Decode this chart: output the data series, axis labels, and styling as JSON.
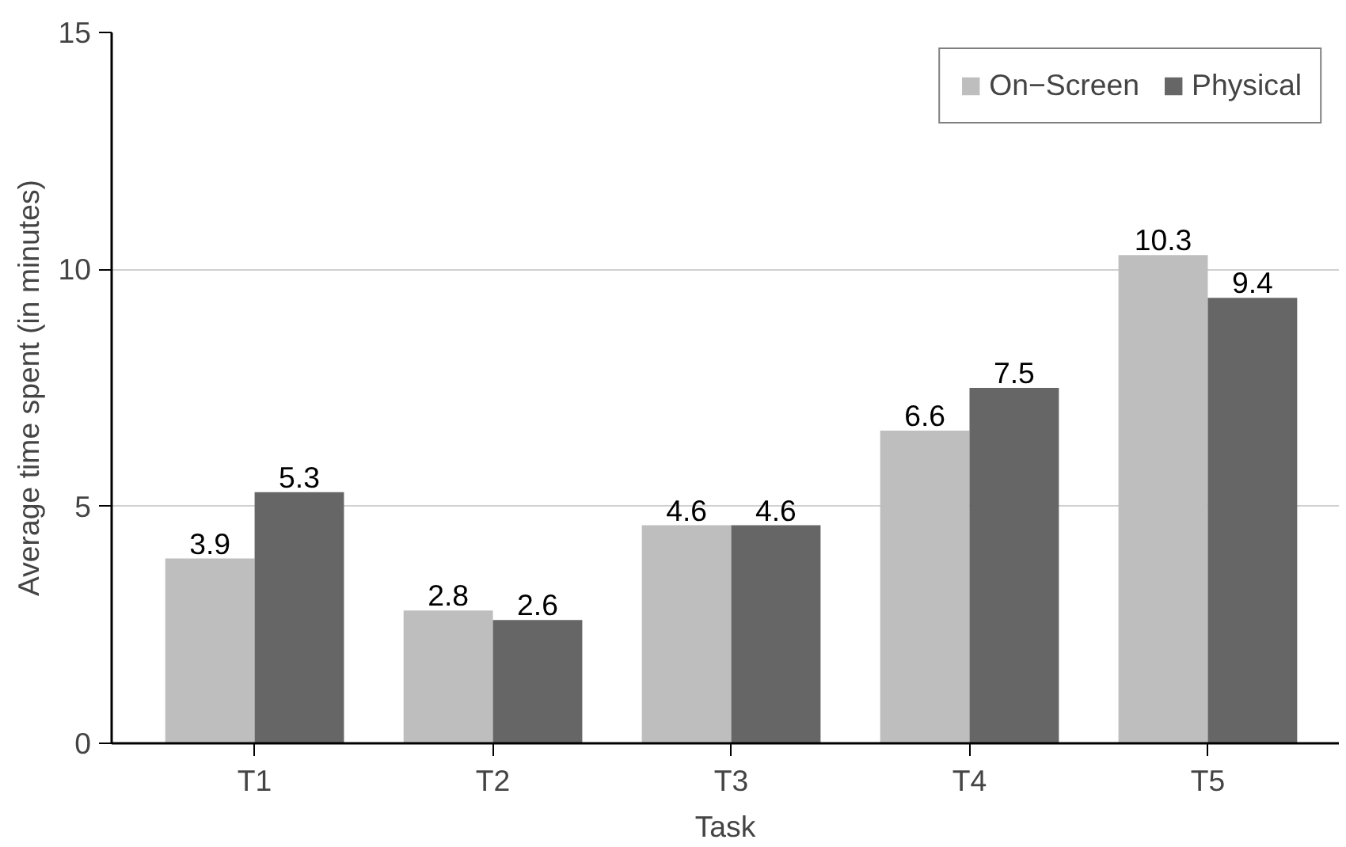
{
  "chart_data": {
    "type": "bar",
    "xlabel": "Task",
    "ylabel": "Average time spent (in minutes)",
    "categories": [
      "T1",
      "T2",
      "T3",
      "T4",
      "T5"
    ],
    "series": [
      {
        "name": "On−Screen",
        "color": "#bebebe",
        "values": [
          3.9,
          2.8,
          4.6,
          6.6,
          10.3
        ]
      },
      {
        "name": "Physical",
        "color": "#666666",
        "values": [
          5.3,
          2.6,
          4.6,
          7.5,
          9.4
        ]
      }
    ],
    "ylim": [
      0,
      15
    ],
    "yticks": [
      0,
      5,
      10,
      15
    ],
    "grid": "y",
    "legend": "top right",
    "data_labels": true
  }
}
